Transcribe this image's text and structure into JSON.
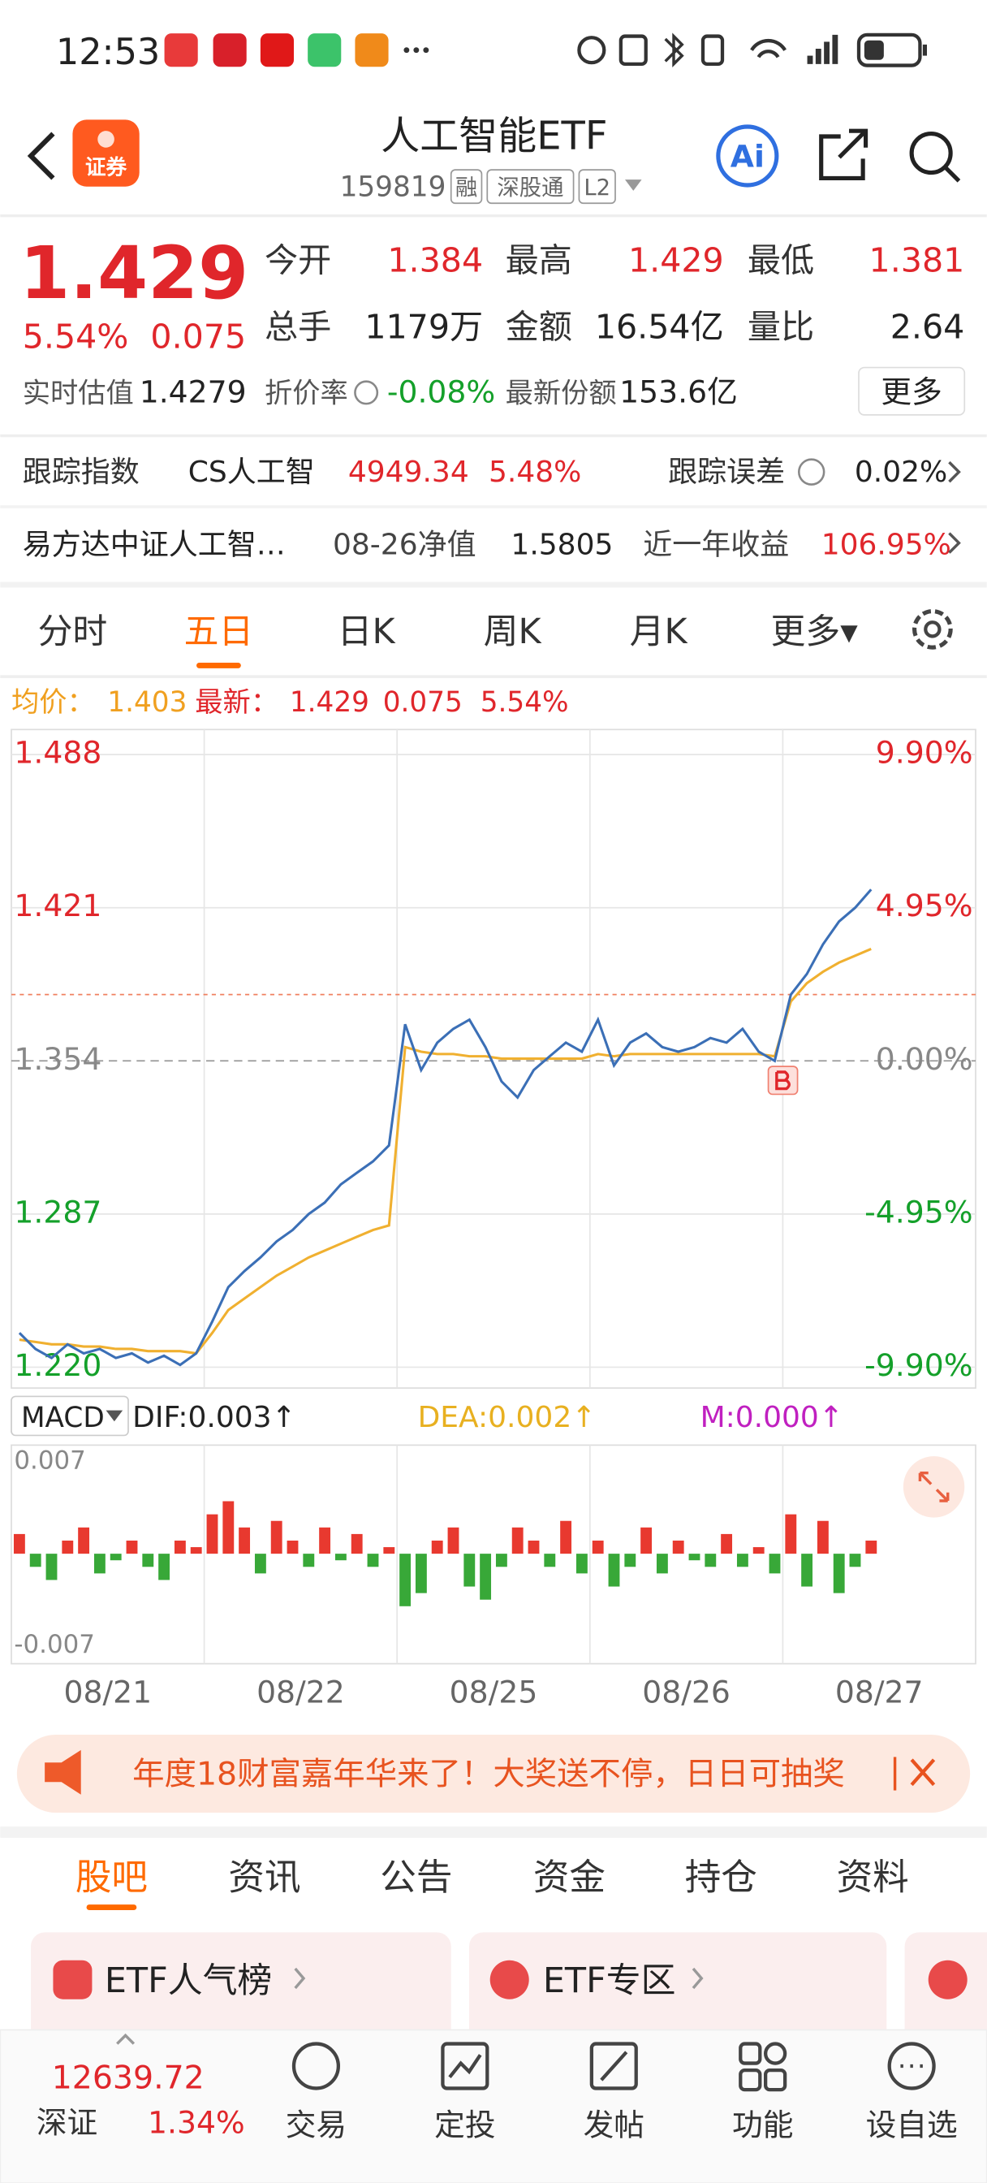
{
  "status_bar": {
    "time": "12:53"
  },
  "header": {
    "logo": "证券",
    "title": "人工智能ETF",
    "code": "159819",
    "tags": [
      "融",
      "深股通",
      "L2"
    ],
    "ai": "Ai"
  },
  "quote": {
    "price": "1.429",
    "change_pct": "5.54%",
    "change": "0.075",
    "fields": [
      {
        "label": "今开",
        "value": "1.384"
      },
      {
        "label": "最高",
        "value": "1.429"
      },
      {
        "label": "最低",
        "value": "1.381"
      },
      {
        "label": "总手",
        "value": "1179万"
      },
      {
        "label": "金额",
        "value": "16.54亿"
      },
      {
        "label": "量比",
        "value": "2.64"
      }
    ],
    "estimate": {
      "label": "实时估值",
      "value": "1.4279"
    },
    "discount": {
      "label": "折价率",
      "value": "-0.08%"
    },
    "shares": {
      "label": "最新份额",
      "value": "153.6亿"
    },
    "more": "更多"
  },
  "tracking": {
    "label": "跟踪指数",
    "index": "CS人工智",
    "points": "4949.34",
    "pct": "5.48%",
    "error_label": "跟踪误差",
    "error": "0.02%"
  },
  "fund": {
    "name": "易方达中证人工智…",
    "nav_label": "08-26净值",
    "nav": "1.5805",
    "return_label": "近一年收益",
    "return": "106.95%"
  },
  "chart_tabs": [
    "分时",
    "五日",
    "日K",
    "周K",
    "月K",
    "更多▾"
  ],
  "chart_data": [
    {
      "type": "line",
      "legend": {
        "avg_value": "1.403",
        "last_value": "1.429",
        "last_change": "0.075",
        "last_pct": "5.54%"
      },
      "series": [
        {
          "name": "均价：",
          "color": "#f0b030",
          "values": [
            1.232,
            1.231,
            1.23,
            1.23,
            1.229,
            1.229,
            1.228,
            1.228,
            1.227,
            1.227,
            1.227,
            1.226,
            1.235,
            1.245,
            1.25,
            1.255,
            1.26,
            1.264,
            1.268,
            1.271,
            1.274,
            1.277,
            1.28,
            1.282,
            1.36,
            1.358,
            1.357,
            1.357,
            1.356,
            1.356,
            1.355,
            1.355,
            1.355,
            1.355,
            1.355,
            1.355,
            1.357,
            1.356,
            1.357,
            1.357,
            1.357,
            1.357,
            1.357,
            1.357,
            1.357,
            1.357,
            1.357,
            1.356,
            1.38,
            1.388,
            1.393,
            1.397,
            1.4,
            1.403
          ]
        },
        {
          "name": "最新：",
          "color": "#3b6fb6",
          "values": [
            1.235,
            1.228,
            1.224,
            1.23,
            1.226,
            1.228,
            1.224,
            1.226,
            1.222,
            1.225,
            1.221,
            1.226,
            1.24,
            1.255,
            1.262,
            1.268,
            1.275,
            1.28,
            1.287,
            1.292,
            1.3,
            1.305,
            1.31,
            1.317,
            1.37,
            1.35,
            1.362,
            1.368,
            1.372,
            1.36,
            1.345,
            1.338,
            1.35,
            1.356,
            1.362,
            1.358,
            1.372,
            1.352,
            1.362,
            1.366,
            1.36,
            1.358,
            1.36,
            1.364,
            1.362,
            1.368,
            1.358,
            1.354,
            1.383,
            1.392,
            1.405,
            1.415,
            1.421,
            1.429
          ]
        }
      ],
      "ylim": [
        1.22,
        1.488
      ],
      "yticks": [
        1.488,
        1.421,
        1.354,
        1.287,
        {
          "value": 1.22,
          "label": "1.220"
        }
      ],
      "y2lim": [
        -9.9,
        9.9
      ],
      "y2ticks": [
        {
          "value": 9.9,
          "label": "9.90%"
        },
        {
          "value": 4.95,
          "label": "4.95%"
        },
        {
          "value": 0,
          "label": "0.00%"
        },
        {
          "value": -4.95,
          "label": "-4.95%"
        },
        {
          "value": -9.9,
          "label": "-9.90%"
        }
      ],
      "day_labels": [
        "08/21",
        "08/22",
        "08/25",
        "08/26",
        "08/27"
      ],
      "grid": true
    },
    {
      "type": "bar",
      "title": "MACD",
      "indicators": [
        "DIF:0.003↑",
        "DEA:0.002↑",
        "M:0.000↑"
      ],
      "values": [
        0.0015,
        -0.001,
        -0.002,
        0.001,
        0.002,
        -0.0015,
        -0.0005,
        0.001,
        -0.001,
        -0.002,
        0.001,
        0.0005,
        0.003,
        0.004,
        0.002,
        -0.0015,
        0.0025,
        0.001,
        -0.001,
        0.002,
        -0.0005,
        0.0015,
        -0.001,
        0.0005,
        -0.004,
        -0.003,
        0.001,
        0.002,
        -0.0025,
        -0.0035,
        -0.001,
        0.002,
        0.001,
        -0.001,
        0.0025,
        -0.0015,
        0.001,
        -0.0025,
        -0.001,
        0.002,
        -0.0015,
        0.001,
        -0.0005,
        -0.001,
        0.0015,
        -0.001,
        0.0005,
        -0.0015,
        0.003,
        -0.0025,
        0.0025,
        -0.003,
        -0.001,
        0.001
      ],
      "ylim": [
        -0.007,
        0.007
      ],
      "yticks": [
        0.007,
        -0.007
      ],
      "colors": {
        "up": "#e8392f",
        "down": "#38a838"
      }
    }
  ],
  "banner": {
    "text": "年度18财富嘉年华来了！大奖送不停，日日可抽奖"
  },
  "sub_tabs": [
    "股吧",
    "资讯",
    "公告",
    "资金",
    "持仓",
    "资料"
  ],
  "cards": [
    "ETF人气榜",
    "ETF专区"
  ],
  "bottom": {
    "index_value": "12639.72",
    "index_name": "深证",
    "index_pct": "1.34%",
    "nav": [
      "交易",
      "定投",
      "发帖",
      "功能",
      "设自选"
    ]
  }
}
